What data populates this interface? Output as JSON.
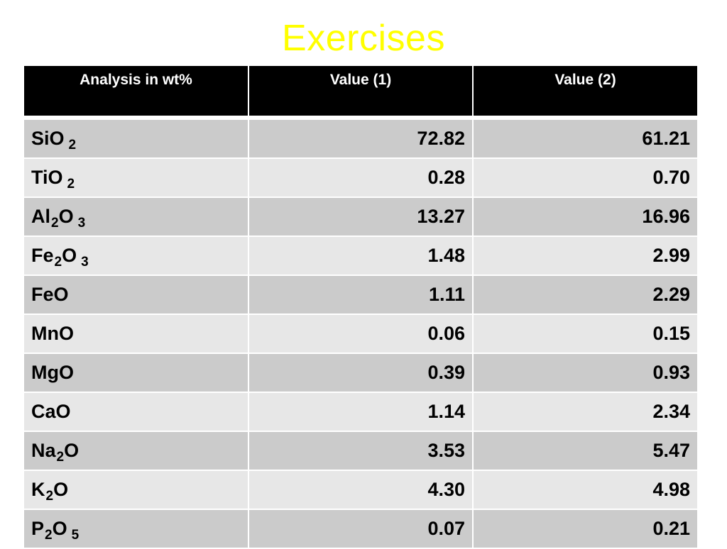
{
  "title": "Exercises",
  "table": {
    "headers": [
      "Analysis in wt%",
      "Value (1)",
      "Value (2)"
    ],
    "rows": [
      {
        "parts": [
          {
            "t": "SiO"
          },
          {
            "sub": "2",
            "spaced": true
          }
        ],
        "v1": "72.82",
        "v2": "61.21"
      },
      {
        "parts": [
          {
            "t": "TiO"
          },
          {
            "sub": "2",
            "spaced": true
          }
        ],
        "v1": "0.28",
        "v2": "0.70"
      },
      {
        "parts": [
          {
            "t": "Al"
          },
          {
            "sub": "2"
          },
          {
            "t": "O"
          },
          {
            "sub": "3",
            "spaced": true
          }
        ],
        "v1": "13.27",
        "v2": "16.96"
      },
      {
        "parts": [
          {
            "t": "Fe"
          },
          {
            "sub": "2"
          },
          {
            "t": "O"
          },
          {
            "sub": "3",
            "spaced": true
          }
        ],
        "v1": "1.48",
        "v2": "2.99"
      },
      {
        "parts": [
          {
            "t": "FeO"
          }
        ],
        "v1": "1.11",
        "v2": "2.29"
      },
      {
        "parts": [
          {
            "t": "MnO"
          }
        ],
        "v1": "0.06",
        "v2": "0.15"
      },
      {
        "parts": [
          {
            "t": "MgO"
          }
        ],
        "v1": "0.39",
        "v2": "0.93"
      },
      {
        "parts": [
          {
            "t": "CaO"
          }
        ],
        "v1": "1.14",
        "v2": "2.34"
      },
      {
        "parts": [
          {
            "t": "Na"
          },
          {
            "sub": "2"
          },
          {
            "t": "O"
          }
        ],
        "v1": "3.53",
        "v2": "5.47"
      },
      {
        "parts": [
          {
            "t": "K"
          },
          {
            "sub": "2"
          },
          {
            "t": "O"
          }
        ],
        "v1": "4.30",
        "v2": "4.98"
      },
      {
        "parts": [
          {
            "t": "P"
          },
          {
            "sub": "2"
          },
          {
            "t": "O"
          },
          {
            "sub": "5",
            "spaced": true
          }
        ],
        "v1": "0.07",
        "v2": "0.21"
      }
    ]
  },
  "colors": {
    "title": "#ffff00",
    "header_bg": "#000000",
    "header_text": "#ffffff",
    "row_dark": "#cbcbcb",
    "row_light": "#e7e7e7"
  }
}
